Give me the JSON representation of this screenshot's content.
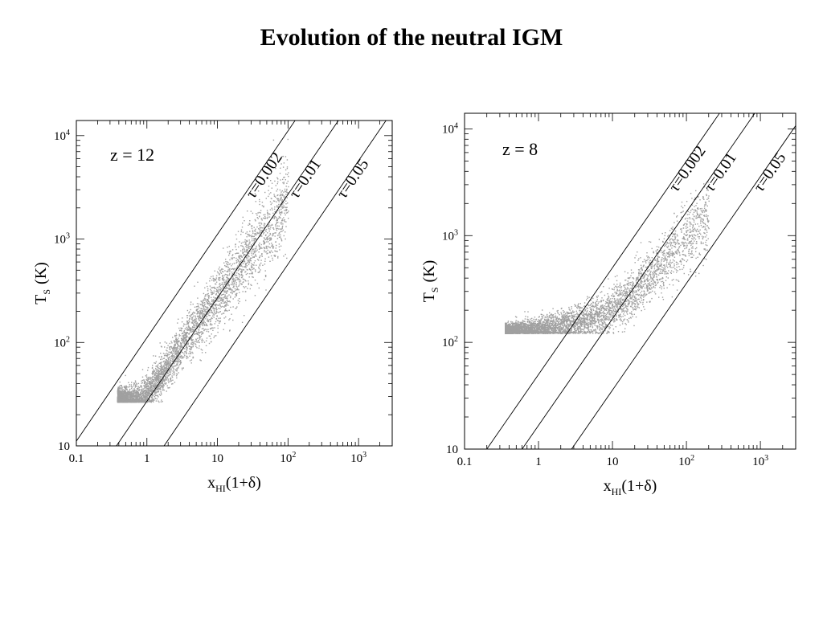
{
  "slide": {
    "title": "Evolution of the neutral IGM"
  },
  "chart_data": [
    {
      "type": "scatter",
      "panel_label": "z = 12",
      "xlabel": "x",
      "xlabel_sub": "HI",
      "xlabel_tail": "(1+δ)",
      "ylabel": "T",
      "ylabel_sub": "S",
      "ylabel_tail": "(K)",
      "x_scale": "log",
      "y_scale": "log",
      "xlim": [
        0.1,
        3000
      ],
      "ylim": [
        10,
        14000
      ],
      "x_ticks": [
        {
          "value": 0.1,
          "base": "0.1",
          "exp": ""
        },
        {
          "value": 1,
          "base": "1",
          "exp": ""
        },
        {
          "value": 10,
          "base": "10",
          "exp": ""
        },
        {
          "value": 100,
          "base": "10",
          "exp": "2"
        },
        {
          "value": 1000,
          "base": "10",
          "exp": "3"
        }
      ],
      "y_ticks": [
        {
          "value": 10,
          "base": "10",
          "exp": ""
        },
        {
          "value": 100,
          "base": "10",
          "exp": "2"
        },
        {
          "value": 1000,
          "base": "10",
          "exp": "3"
        },
        {
          "value": 10000,
          "base": "10",
          "exp": "4"
        }
      ],
      "tau_lines": [
        {
          "label": "τ=0.002",
          "x_at_T10": 0.09
        },
        {
          "label": "τ=0.01",
          "x_at_T10": 0.37
        },
        {
          "label": "τ=0.05",
          "x_at_T10": 1.75
        }
      ],
      "scatter_color": "#a0a0a0",
      "scatter_trend": [
        {
          "x": 0.38,
          "y": 28
        },
        {
          "x": 0.8,
          "y": 28
        },
        {
          "x": 1.5,
          "y": 45
        },
        {
          "x": 3,
          "y": 95
        },
        {
          "x": 6,
          "y": 180
        },
        {
          "x": 15,
          "y": 400
        },
        {
          "x": 40,
          "y": 1000
        },
        {
          "x": 100,
          "y": 2500
        }
      ]
    },
    {
      "type": "scatter",
      "panel_label": "z = 8",
      "xlabel": "x",
      "xlabel_sub": "HI",
      "xlabel_tail": "(1+δ)",
      "ylabel": "T",
      "ylabel_sub": "S",
      "ylabel_tail": "(K)",
      "x_scale": "log",
      "y_scale": "log",
      "xlim": [
        0.1,
        3000
      ],
      "ylim": [
        10,
        14000
      ],
      "x_ticks": [
        {
          "value": 0.1,
          "base": "0.1",
          "exp": ""
        },
        {
          "value": 1,
          "base": "1",
          "exp": ""
        },
        {
          "value": 10,
          "base": "10",
          "exp": ""
        },
        {
          "value": 100,
          "base": "10",
          "exp": "2"
        },
        {
          "value": 1000,
          "base": "10",
          "exp": "3"
        }
      ],
      "y_ticks": [
        {
          "value": 10,
          "base": "10",
          "exp": ""
        },
        {
          "value": 100,
          "base": "10",
          "exp": "2"
        },
        {
          "value": 1000,
          "base": "10",
          "exp": "3"
        },
        {
          "value": 10000,
          "base": "10",
          "exp": "4"
        }
      ],
      "tau_lines": [
        {
          "label": "τ=0.002",
          "x_at_T10": 0.2
        },
        {
          "label": "τ=0.01",
          "x_at_T10": 0.6
        },
        {
          "label": "τ=0.05",
          "x_at_T10": 2.8
        }
      ],
      "scatter_color": "#a0a0a0",
      "scatter_trend": [
        {
          "x": 0.35,
          "y": 128
        },
        {
          "x": 1,
          "y": 135
        },
        {
          "x": 3,
          "y": 150
        },
        {
          "x": 8,
          "y": 185
        },
        {
          "x": 20,
          "y": 300
        },
        {
          "x": 50,
          "y": 600
        },
        {
          "x": 100,
          "y": 1000
        },
        {
          "x": 200,
          "y": 1500
        }
      ]
    }
  ]
}
